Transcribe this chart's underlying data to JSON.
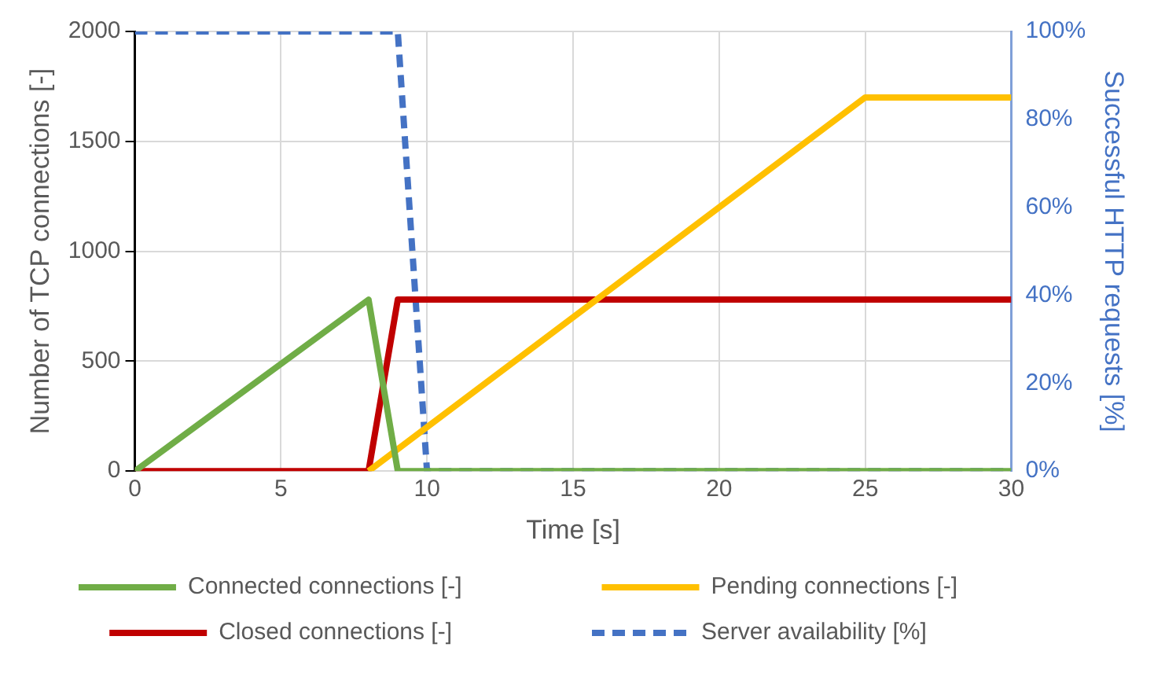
{
  "chart_data": {
    "type": "line",
    "xlabel": "Time [s]",
    "ylabel": "Number of TCP connections [-]",
    "y2label": "Successful HTTP requests [%]",
    "xlim": [
      0,
      30
    ],
    "xticks": [
      0,
      5,
      10,
      15,
      20,
      25,
      30
    ],
    "ylim": [
      0,
      2000
    ],
    "yticks": [
      0,
      500,
      1000,
      1500,
      2000
    ],
    "y2lim": [
      0,
      100
    ],
    "y2ticks": [
      {
        "value": 0,
        "label": "0%"
      },
      {
        "value": 20,
        "label": "20%"
      },
      {
        "value": 40,
        "label": "40%"
      },
      {
        "value": 60,
        "label": "60%"
      },
      {
        "value": 80,
        "label": "80%"
      },
      {
        "value": 100,
        "label": "100%"
      }
    ],
    "grid": true,
    "legend": "bottom",
    "marker": "none",
    "series": [
      {
        "name": "Connected connections [-]",
        "color": "#70ad47",
        "x": [
          0,
          8,
          9,
          30
        ],
        "values": [
          0,
          780,
          0,
          0
        ]
      },
      {
        "name": "Pending connections [-]",
        "color": "#ffc000",
        "x": [
          8,
          25,
          30
        ],
        "values": [
          0,
          1700,
          1700
        ]
      },
      {
        "name": "Closed connections [-]",
        "color": "#c00000",
        "x": [
          0,
          8,
          9,
          30
        ],
        "values": [
          0,
          0,
          780,
          780
        ]
      },
      {
        "name": "Server availability [%]",
        "color": "#4472c4",
        "axis": "y2",
        "line_style": "dashed",
        "x": [
          0,
          9,
          10,
          30
        ],
        "values": [
          100,
          100,
          0,
          0
        ]
      }
    ]
  }
}
